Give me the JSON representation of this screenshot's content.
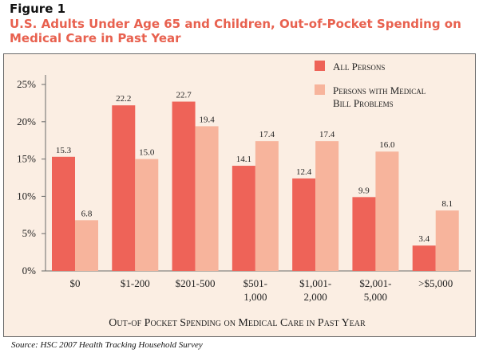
{
  "figure_label": "Figure 1",
  "title": "U.S. Adults Under Age 65 and Children, Out-of-Pocket Spending on Medical Care in Past Year",
  "source": "Source:  HSC 2007 Health Tracking Household Survey",
  "colors": {
    "title": "#e8614f",
    "all_persons": "#ee6358",
    "medical_bill_problems": "#f7b49c",
    "background": "#fbeee3"
  },
  "chart_data": {
    "type": "bar",
    "title": "U.S. Adults Under Age 65 and Children, Out-of-Pocket Spending on Medical Care in Past Year",
    "xlabel": "Out-of Pocket Spending on Medical Care in Past Year",
    "ylabel": "",
    "categories": [
      [
        "$0"
      ],
      [
        "$1-200"
      ],
      [
        "$201-500"
      ],
      [
        "$501-",
        "1,000"
      ],
      [
        "$1,001-",
        "2,000"
      ],
      [
        "$2,001-",
        "5,000"
      ],
      [
        ">$5,000"
      ]
    ],
    "series": [
      {
        "name": "All Persons",
        "color": "#ee6358",
        "values": [
          15.3,
          22.2,
          22.7,
          14.1,
          12.4,
          9.9,
          3.4
        ],
        "labels": [
          "15.3",
          "22.2",
          "22.7",
          "14.1",
          "12.4",
          "9.9",
          "3.4"
        ]
      },
      {
        "name": "Persons with Medical Bill Problems",
        "color": "#f7b49c",
        "values": [
          6.8,
          15.0,
          19.4,
          17.4,
          17.4,
          16.0,
          8.1
        ],
        "labels": [
          "6.8",
          "15.0",
          "19.4",
          "17.4",
          "17.4",
          "16.0",
          "8.1"
        ]
      }
    ],
    "legend_lines": [
      [
        "All Persons"
      ],
      [
        "Persons with Medical",
        "Bill Problems"
      ]
    ],
    "yticks": [
      0,
      5,
      10,
      15,
      20,
      25
    ],
    "ytick_labels": [
      "0%",
      "5%",
      "10%",
      "15%",
      "20%",
      "25%"
    ],
    "ylim": [
      0,
      25
    ],
    "grid": false,
    "legend_position": "top-right"
  }
}
